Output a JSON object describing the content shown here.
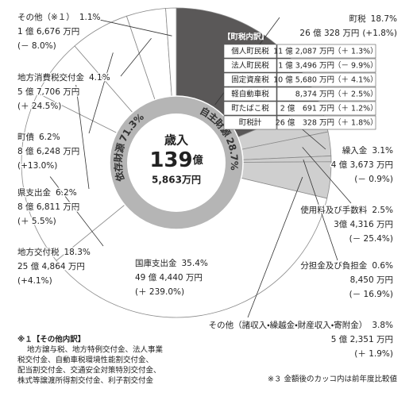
{
  "chart_data": {
    "type": "pie",
    "categories": [
      "町税",
      "繰入金",
      "使用料及び手数料",
      "分担金及び負担金",
      "その他（諸収入・繰越金・財産収入・寄附金）",
      "国庫支出金",
      "地方交付税",
      "県支出金",
      "町債",
      "地方消費税交付金",
      "その他（※１）"
    ],
    "values": [
      18.7,
      3.1,
      2.5,
      0.6,
      3.8,
      35.4,
      18.3,
      6.2,
      6.2,
      4.1,
      1.1
    ],
    "value_labels": [
      "18.7%",
      "3.1%",
      "2.5%",
      "0.6%",
      "3.8%",
      "35.4%",
      "18.3%",
      "6.2%",
      "6.2%",
      "4.1%",
      "1.1%"
    ],
    "amounts": [
      "26 億 328 万円",
      "4 億 3,673 万円",
      "3億 4,316 万円",
      "8,450 万円",
      "5 億 2,351 万円",
      "49 億 4,440 万円",
      "25 億 4,864 万円",
      "8 億 6,811 万円",
      "8 億 6,248 万円",
      "5 億 7,706 万円",
      "1 億 6,676 万円"
    ],
    "changes": [
      "(+1.8%)",
      "(－ 0.9%)",
      "(－ 25.4%)",
      "(－ 16.9%)",
      "(＋ 1.9%)",
      "(＋ 239.0%)",
      "(+4.1%)",
      "(＋ 5.5%)",
      "(+13.0%)",
      "(＋ 24.5%)",
      "(－ 8.0%)"
    ],
    "colors": [
      "#5a5858",
      "#cfcfcf",
      "#cfcfcf",
      "#cfcfcf",
      "#cfcfcf",
      "#ffffff",
      "#ffffff",
      "#ffffff",
      "#ffffff",
      "#ffffff",
      "#ffffff"
    ]
  },
  "center": {
    "title": "歳入",
    "total_main": "139",
    "unit": "億",
    "total_sub": "5,863万円"
  },
  "ring": [
    {
      "name": "自主財源",
      "label": "28.7%"
    },
    {
      "name": "依存財源",
      "label": "71.3%"
    }
  ],
  "tax_breakdown": {
    "title": "【町税内訳】",
    "rows": [
      [
        "個人町民税",
        "11 億 2,087 万円",
        "（＋ 1.3%）"
      ],
      [
        "法人町民税",
        "1 億 3,496 万円",
        "（－ 9.9%）"
      ],
      [
        "固定資産税",
        "10 億 5,680 万円",
        "（＋ 4.1%）"
      ],
      [
        "軽自動車税",
        "8,374 万円",
        "（＋ 2.5%）"
      ],
      [
        "町たばこ税",
        "2 億　691 万円",
        "（＋ 1.2%）"
      ],
      [
        "町税計",
        "26 億　328 万円",
        "（＋ 1.8%）"
      ]
    ]
  },
  "notes": {
    "other_title": "※１【その他内訳】",
    "other_lines": [
      "地方譲与税、地方特例交付金、法人事業",
      "税交付金、自動車税環境性能割交付金、",
      "配当割交付金、交通安全対策特別交付金、",
      "株式等譲渡所得割交付金、利子割交付金"
    ],
    "footnote": "※３ 金額後のカッコ内は前年度比較値"
  }
}
